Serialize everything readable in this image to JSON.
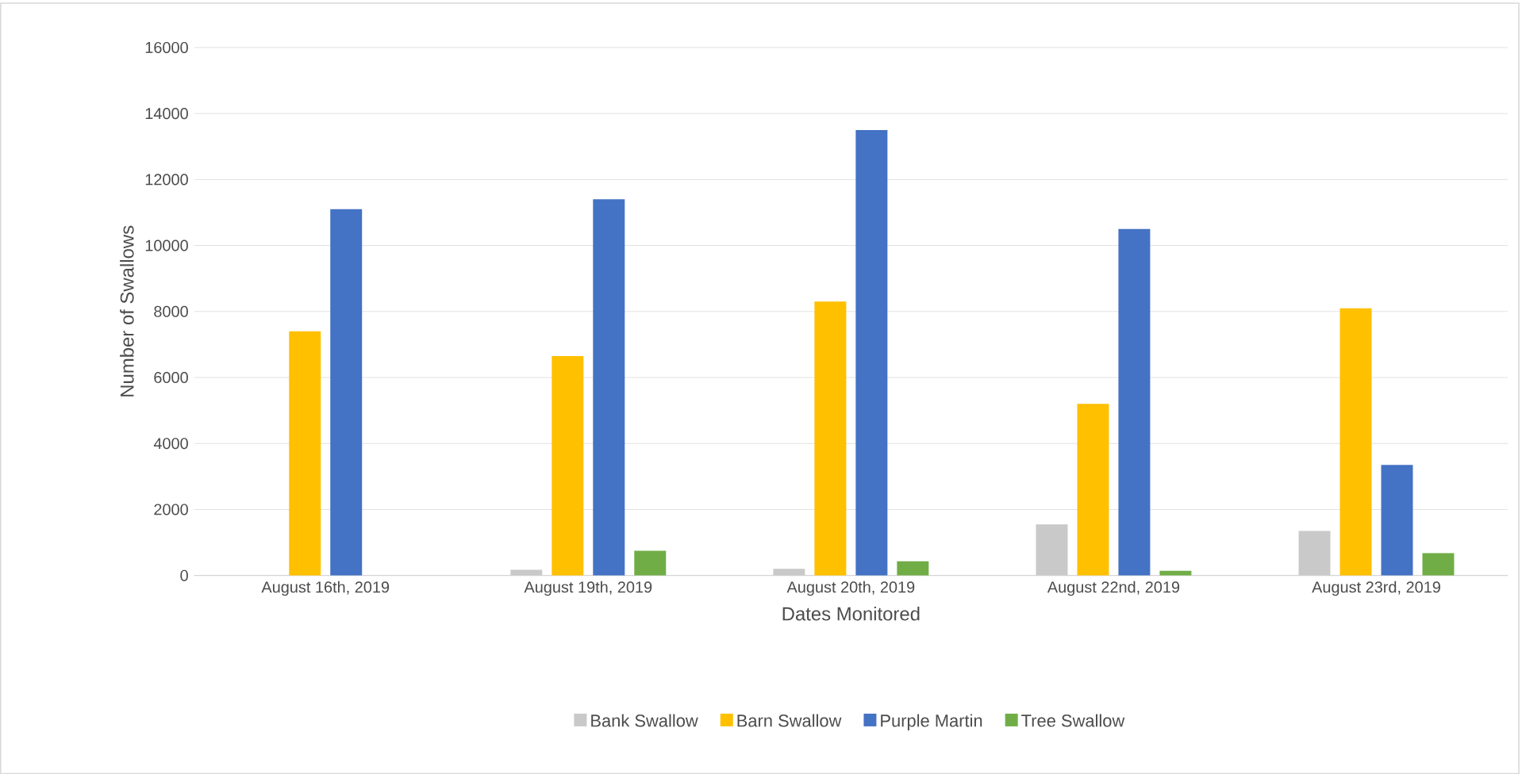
{
  "chart_data": {
    "type": "bar",
    "xlabel": "Dates Monitored",
    "ylabel": "Number of Swallows",
    "categories": [
      "August 16th, 2019",
      "August 19th, 2019",
      "August 20th, 2019",
      "August 22nd, 2019",
      "August 23rd, 2019"
    ],
    "series": [
      {
        "name": "Bank Swallow",
        "color": "#c9c9c9",
        "values": [
          0,
          170,
          200,
          1550,
          1350
        ]
      },
      {
        "name": "Barn Swallow",
        "color": "#ffc000",
        "values": [
          7400,
          6650,
          8300,
          5200,
          8100
        ]
      },
      {
        "name": "Purple Martin",
        "color": "#4472c4",
        "values": [
          11100,
          11400,
          13500,
          10500,
          3350
        ]
      },
      {
        "name": "Tree Swallow",
        "color": "#70ad47",
        "values": [
          0,
          750,
          430,
          140,
          680
        ]
      }
    ],
    "ylim": [
      0,
      16000
    ],
    "yticks": [
      0,
      2000,
      4000,
      6000,
      8000,
      10000,
      12000,
      14000,
      16000
    ],
    "grid": "y",
    "legend": "bottom"
  }
}
